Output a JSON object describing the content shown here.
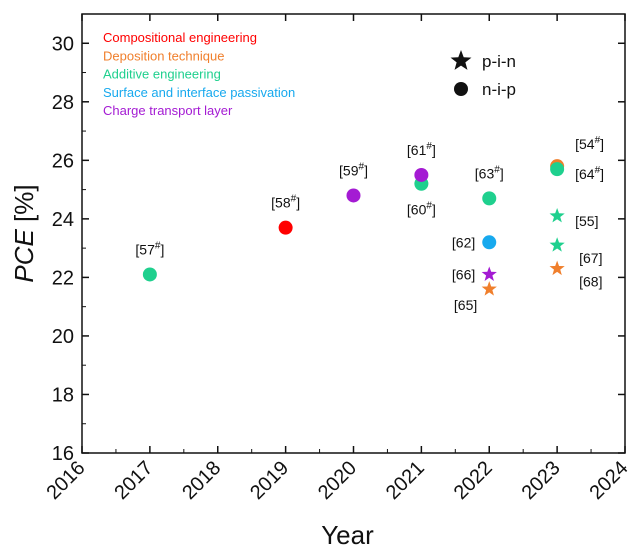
{
  "chart_data": {
    "type": "scatter",
    "xlabel": "Year",
    "ylabel_italic": "PCE",
    "ylabel_unit": " [%]",
    "xlim": [
      2016,
      2024
    ],
    "ylim": [
      16,
      31
    ],
    "x_ticks": [
      "2016",
      "2017",
      "2018",
      "2019",
      "2020",
      "2021",
      "2022",
      "2023",
      "2024"
    ],
    "y_ticks": [
      "16",
      "18",
      "20",
      "22",
      "24",
      "26",
      "28",
      "30"
    ],
    "grid": false,
    "categories": [
      {
        "name": "Compositional engineering",
        "color": "#ff0000"
      },
      {
        "name": "Deposition technique",
        "color": "#f07f2c"
      },
      {
        "name": "Additive engineering",
        "color": "#1fd08e"
      },
      {
        "name": "Surface and interface passivation",
        "color": "#17a9ee"
      },
      {
        "name": "Charge transport layer",
        "color": "#a41bd3"
      }
    ],
    "marker_legend": [
      {
        "shape": "star",
        "label": "p-i-n"
      },
      {
        "shape": "circle",
        "label": "n-i-p"
      }
    ],
    "points": [
      {
        "x": 2017,
        "y": 22.1,
        "category": 2,
        "shape": "circle",
        "ref": "[57",
        "sup": "#",
        "ref_end": "]",
        "label_pos": "above"
      },
      {
        "x": 2019,
        "y": 23.7,
        "category": 0,
        "shape": "circle",
        "ref": "[58",
        "sup": "#",
        "ref_end": "]",
        "label_pos": "above"
      },
      {
        "x": 2020,
        "y": 24.8,
        "category": 4,
        "shape": "circle",
        "ref": "[59",
        "sup": "#",
        "ref_end": "]",
        "label_pos": "above"
      },
      {
        "x": 2021,
        "y": 25.2,
        "category": 2,
        "shape": "circle",
        "ref": "[60",
        "sup": "#",
        "ref_end": "]",
        "label_pos": "below"
      },
      {
        "x": 2021,
        "y": 25.5,
        "category": 4,
        "shape": "circle",
        "ref": "[61",
        "sup": "#",
        "ref_end": "]",
        "label_pos": "above"
      },
      {
        "x": 2022,
        "y": 24.7,
        "category": 2,
        "shape": "circle",
        "ref": "[63",
        "sup": "#",
        "ref_end": "]",
        "label_pos": "above"
      },
      {
        "x": 2022,
        "y": 23.2,
        "category": 3,
        "shape": "circle",
        "ref": "[62]",
        "sup": "",
        "ref_end": "",
        "label_pos": "left"
      },
      {
        "x": 2022,
        "y": 22.1,
        "category": 4,
        "shape": "star",
        "ref": "[66]",
        "sup": "",
        "ref_end": "",
        "label_pos": "left"
      },
      {
        "x": 2022,
        "y": 21.6,
        "category": 1,
        "shape": "star",
        "ref": "[65]",
        "sup": "",
        "ref_end": "",
        "label_pos": "below-left"
      },
      {
        "x": 2023,
        "y": 25.8,
        "category": 1,
        "shape": "circle",
        "ref": "[54",
        "sup": "#",
        "ref_end": "]",
        "label_pos": "above-right"
      },
      {
        "x": 2023,
        "y": 25.7,
        "category": 2,
        "shape": "circle",
        "ref": "[64",
        "sup": "#",
        "ref_end": "]",
        "label_pos": "right"
      },
      {
        "x": 2023,
        "y": 24.1,
        "category": 2,
        "shape": "star",
        "ref": "[55]",
        "sup": "",
        "ref_end": "",
        "label_pos": "right"
      },
      {
        "x": 2023,
        "y": 23.1,
        "category": 2,
        "shape": "star",
        "ref": "[67]",
        "sup": "",
        "ref_end": "",
        "label_pos": "right-below"
      },
      {
        "x": 2023,
        "y": 22.3,
        "category": 1,
        "shape": "star",
        "ref": "[68]",
        "sup": "",
        "ref_end": "",
        "label_pos": "right-below"
      }
    ]
  }
}
